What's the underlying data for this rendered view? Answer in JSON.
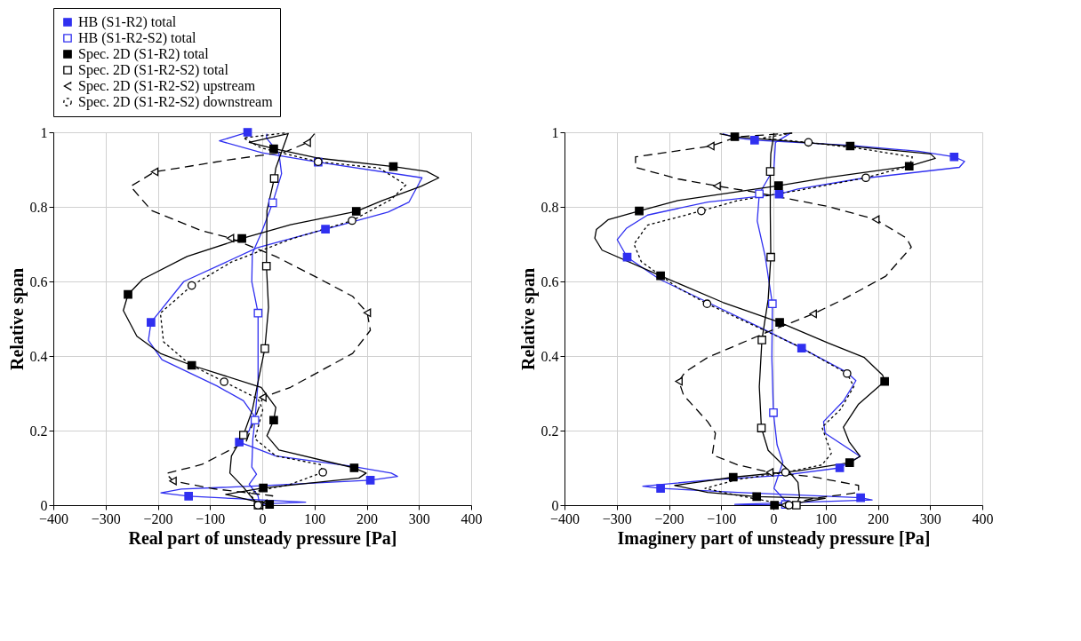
{
  "chart_data": [
    {
      "type": "line",
      "xlabel": "Real part of unsteady pressure [Pa]",
      "ylabel": "Relative span",
      "xlim": [
        -400,
        400
      ],
      "ylim": [
        0,
        1
      ],
      "xticks": [
        -400,
        -300,
        -200,
        -100,
        0,
        100,
        200,
        300,
        400
      ],
      "yticks": [
        0,
        0.2,
        0.4,
        0.6,
        0.8,
        1
      ],
      "grid": true,
      "legend": "top",
      "series": [
        {
          "type": "line",
          "name": "HB (S1-R2) total",
          "color": "#3030f0",
          "line_style": "solid",
          "x": [
            -28,
            -82,
            0,
            107,
            306,
            281,
            241,
            121,
            -10,
            -150,
            -213,
            -218,
            -192,
            -87,
            -36,
            -16,
            -25,
            -44,
            -25,
            26,
            168,
            247,
            259,
            207,
            -2,
            -155,
            -194,
            -141,
            -59,
            83,
            9,
            -2
          ],
          "values": [
            1.0,
            0.977,
            0.945,
            0.92,
            0.878,
            0.813,
            0.786,
            0.74,
            0.69,
            0.6,
            0.49,
            0.442,
            0.39,
            0.32,
            0.28,
            0.24,
            0.2,
            0.169,
            0.159,
            0.132,
            0.105,
            0.086,
            0.077,
            0.067,
            0.052,
            0.043,
            0.033,
            0.024,
            0.018,
            0.008,
            0.004,
            0.0
          ]
        },
        {
          "type": "scatter",
          "color": "#3030f0",
          "marker": "square",
          "x": [
            -28,
            107,
            121,
            -213,
            -44,
            207,
            -141
          ],
          "values": [
            1.0,
            0.92,
            0.74,
            0.49,
            0.169,
            0.067,
            0.024
          ]
        },
        {
          "type": "line",
          "name": "HB (S1-R2-S2) total",
          "color": "#3030f0",
          "line_style": "solid",
          "x": [
            9,
            8,
            32,
            37,
            20,
            -2,
            -19,
            -20,
            -8,
            -8,
            -14,
            -18,
            -20,
            -11,
            -25,
            -8,
            -5
          ],
          "values": [
            0.996,
            0.985,
            0.943,
            0.889,
            0.811,
            0.729,
            0.675,
            0.599,
            0.515,
            0.331,
            0.228,
            0.178,
            0.102,
            0.083,
            0.056,
            0.025,
            0.0
          ]
        },
        {
          "type": "scatter",
          "color": "#3030f0",
          "colors": [
            "#ffffff",
            "#ffffff",
            "#ffffff"
          ],
          "marker": "square",
          "x": [
            20,
            -8,
            -14
          ],
          "values": [
            0.811,
            0.515,
            0.228
          ]
        },
        {
          "type": "line",
          "name": "Spec. 2D (S1-R2) total",
          "color": "#000000",
          "line_style": "solid",
          "x": [
            49,
            -25,
            22,
            105,
            251,
            315,
            338,
            304,
            230,
            180,
            54,
            -39,
            -144,
            -229,
            -257,
            -266,
            -240,
            -195,
            -135,
            -2,
            26,
            22,
            9,
            32,
            176,
            199,
            185,
            2,
            -70,
            -25,
            14
          ],
          "values": [
            0.996,
            0.973,
            0.956,
            0.931,
            0.908,
            0.895,
            0.878,
            0.855,
            0.817,
            0.788,
            0.752,
            0.715,
            0.667,
            0.606,
            0.565,
            0.522,
            0.453,
            0.407,
            0.375,
            0.316,
            0.262,
            0.228,
            0.186,
            0.148,
            0.1,
            0.086,
            0.073,
            0.046,
            0.029,
            0.014,
            0.002
          ]
        },
        {
          "type": "scatter",
          "color": "#000000",
          "marker": "square",
          "x": [
            22,
            251,
            180,
            -39,
            -257,
            -135,
            22,
            176,
            2,
            14
          ],
          "values": [
            0.956,
            0.908,
            0.788,
            0.715,
            0.565,
            0.375,
            0.228,
            0.1,
            0.046,
            0.002
          ]
        },
        {
          "type": "line",
          "name": "Spec. 2D (S1-R2-S2) total",
          "color": "#000000",
          "line_style": "solid",
          "x": [
            50,
            26,
            23,
            9,
            8,
            12,
            5,
            -8,
            -19,
            -36,
            -59,
            -62,
            -36,
            -8
          ],
          "values": [
            0.998,
            0.904,
            0.876,
            0.79,
            0.641,
            0.53,
            0.42,
            0.331,
            0.255,
            0.188,
            0.132,
            0.086,
            0.048,
            0.0
          ]
        },
        {
          "type": "scatter",
          "color": "#000000",
          "colors": [
            "#ffffff",
            "#ffffff",
            "#ffffff",
            "#ffffff",
            "#ffffff"
          ],
          "marker": "square",
          "x": [
            23,
            8,
            5,
            -36,
            -8
          ],
          "values": [
            0.876,
            0.641,
            0.42,
            0.188,
            0.0
          ]
        },
        {
          "type": "line",
          "name": "Spec. 2D (S1-R2-S2) upstream",
          "color": "#000000",
          "line_style": "dashed",
          "x": [
            100,
            86,
            43,
            -59,
            -206,
            -252,
            -212,
            -116,
            -61,
            26,
            111,
            173,
            201,
            207,
            173,
            54,
            1,
            -31,
            -116,
            -184,
            -171,
            -93,
            20,
            -5
          ],
          "values": [
            0.996,
            0.972,
            0.947,
            0.927,
            0.894,
            0.855,
            0.79,
            0.736,
            0.716,
            0.667,
            0.606,
            0.56,
            0.516,
            0.469,
            0.407,
            0.316,
            0.289,
            0.17,
            0.109,
            0.085,
            0.065,
            0.044,
            0.025,
            0.0
          ]
        },
        {
          "type": "scatter",
          "color": "#000000",
          "colors": [
            "#ffffff",
            "#ffffff",
            "#ffffff",
            "#ffffff",
            "#ffffff",
            "#ffffff",
            "#ffffff"
          ],
          "marker": "triangle",
          "x": [
            86,
            -206,
            -61,
            201,
            1,
            -171,
            -5
          ],
          "values": [
            0.972,
            0.894,
            0.716,
            0.516,
            0.289,
            0.065,
            0.0
          ]
        },
        {
          "type": "line",
          "name": "Spec. 2D (S1-R2-S2) downstream",
          "color": "#000000",
          "line_style": "dotted",
          "x": [
            43,
            -36,
            -2,
            107,
            224,
            275,
            247,
            172,
            54,
            -59,
            -135,
            -195,
            -189,
            -138,
            -73,
            -8,
            1,
            -14,
            26,
            111,
            116,
            54,
            -25,
            -8
          ],
          "values": [
            0.998,
            0.985,
            0.958,
            0.921,
            0.904,
            0.859,
            0.82,
            0.763,
            0.713,
            0.652,
            0.589,
            0.515,
            0.438,
            0.377,
            0.331,
            0.285,
            0.255,
            0.178,
            0.132,
            0.109,
            0.088,
            0.056,
            0.033,
            0.0
          ]
        },
        {
          "type": "scatter",
          "color": "#000000",
          "colors": [
            "#ffffff",
            "#ffffff",
            "#ffffff",
            "#ffffff",
            "#ffffff",
            "#ffffff"
          ],
          "marker": "circle",
          "x": [
            107,
            172,
            -135,
            -73,
            116,
            -8
          ],
          "values": [
            0.921,
            0.763,
            0.589,
            0.331,
            0.088,
            0.0
          ]
        }
      ]
    },
    {
      "type": "line",
      "xlabel": "Imaginery part of unsteady pressure [Pa]",
      "ylabel": "Relative span",
      "xlim": [
        -400,
        400
      ],
      "ylim": [
        0,
        1
      ],
      "xticks": [
        -400,
        -300,
        -200,
        -100,
        0,
        100,
        200,
        300,
        400
      ],
      "yticks": [
        0,
        0.2,
        0.4,
        0.6,
        0.8,
        1
      ],
      "grid": true,
      "series": [
        {
          "type": "line",
          "color": "#3030f0",
          "line_style": "solid",
          "x": [
            -97,
            -68,
            -36,
            145,
            278,
            346,
            366,
            356,
            163,
            47,
            11,
            -126,
            -241,
            -281,
            -299,
            -280,
            -218,
            -126,
            -22,
            54,
            140,
            158,
            134,
            96,
            99,
            166,
            127,
            18,
            -126,
            -250,
            -216,
            -68,
            167,
            189,
            -74,
            13
          ],
          "values": [
            0.996,
            0.984,
            0.979,
            0.965,
            0.949,
            0.934,
            0.922,
            0.906,
            0.875,
            0.848,
            0.834,
            0.813,
            0.778,
            0.743,
            0.712,
            0.665,
            0.606,
            0.544,
            0.474,
            0.421,
            0.357,
            0.334,
            0.279,
            0.224,
            0.193,
            0.131,
            0.1,
            0.08,
            0.067,
            0.051,
            0.045,
            0.034,
            0.02,
            0.014,
            0.002,
            0.0
          ]
        },
        {
          "type": "scatter",
          "color": "#3030f0",
          "marker": "square",
          "x": [
            -36,
            346,
            11,
            -280,
            54,
            127,
            -216,
            167
          ],
          "values": [
            0.979,
            0.934,
            0.834,
            0.665,
            0.421,
            0.1,
            0.045,
            0.02
          ]
        },
        {
          "type": "line",
          "color": "#3030f0",
          "line_style": "solid",
          "x": [
            33,
            4,
            1,
            -27,
            -31,
            -16,
            -2,
            -3,
            0,
            7,
            18,
            1,
            24,
            23
          ],
          "values": [
            0.998,
            0.973,
            0.903,
            0.835,
            0.762,
            0.669,
            0.54,
            0.396,
            0.248,
            0.162,
            0.115,
            0.045,
            0.01,
            0.002
          ]
        },
        {
          "type": "scatter",
          "color": "#3030f0",
          "colors": [
            "#ffffff",
            "#ffffff",
            "#ffffff",
            "#ffffff"
          ],
          "marker": "square",
          "x": [
            -27,
            -2,
            0,
            23
          ],
          "values": [
            0.835,
            0.54,
            0.248,
            0.002
          ]
        },
        {
          "type": "line",
          "color": "#000000",
          "line_style": "solid",
          "x": [
            -103,
            -74,
            147,
            301,
            310,
            260,
            105,
            10,
            -183,
            -257,
            -316,
            -339,
            -342,
            -328,
            -216,
            -97,
            12,
            105,
            174,
            209,
            213,
            163,
            134,
            145,
            166,
            146,
            47,
            -77,
            -189,
            -126,
            -32,
            99,
            47,
            2
          ],
          "values": [
            0.996,
            0.988,
            0.963,
            0.942,
            0.93,
            0.909,
            0.879,
            0.857,
            0.817,
            0.789,
            0.766,
            0.739,
            0.716,
            0.684,
            0.615,
            0.544,
            0.49,
            0.435,
            0.396,
            0.349,
            0.332,
            0.271,
            0.209,
            0.17,
            0.131,
            0.114,
            0.092,
            0.075,
            0.053,
            0.034,
            0.023,
            0.018,
            0.006,
            0.0
          ]
        },
        {
          "type": "scatter",
          "color": "#000000",
          "marker": "square",
          "x": [
            -74,
            147,
            260,
            10,
            -257,
            -216,
            12,
            213,
            146,
            -77,
            -32,
            2
          ],
          "values": [
            0.988,
            0.963,
            0.909,
            0.857,
            0.789,
            0.615,
            0.49,
            0.332,
            0.114,
            0.075,
            0.023,
            0.0
          ]
        },
        {
          "type": "line",
          "color": "#000000",
          "line_style": "solid",
          "x": [
            1,
            -5,
            -6,
            -6,
            -5,
            -10,
            -22,
            -27,
            -23,
            -10,
            24,
            47,
            50,
            44
          ],
          "values": [
            0.998,
            0.942,
            0.895,
            0.786,
            0.665,
            0.552,
            0.443,
            0.318,
            0.207,
            0.147,
            0.1,
            0.061,
            0.022,
            0.0
          ]
        },
        {
          "type": "scatter",
          "color": "#000000",
          "colors": [
            "#ffffff",
            "#ffffff",
            "#ffffff",
            "#ffffff",
            "#ffffff"
          ],
          "marker": "square",
          "x": [
            -6,
            -5,
            -22,
            -23,
            44
          ],
          "values": [
            0.895,
            0.665,
            0.443,
            0.207,
            0.0
          ]
        },
        {
          "type": "line",
          "color": "#000000",
          "line_style": "dashed",
          "x": [
            36,
            -68,
            -120,
            -264,
            -264,
            -183,
            -108,
            -39,
            105,
            196,
            255,
            264,
            215,
            134,
            76,
            -22,
            -126,
            -169,
            -181,
            -172,
            -126,
            -111,
            -117,
            -68,
            -7,
            76,
            163,
            163,
            76,
            21
          ],
          "values": [
            0.998,
            0.988,
            0.963,
            0.934,
            0.906,
            0.875,
            0.856,
            0.84,
            0.801,
            0.766,
            0.716,
            0.692,
            0.614,
            0.552,
            0.513,
            0.458,
            0.396,
            0.357,
            0.332,
            0.295,
            0.224,
            0.193,
            0.135,
            0.108,
            0.088,
            0.076,
            0.053,
            0.034,
            0.018,
            0.0
          ]
        },
        {
          "type": "scatter",
          "color": "#000000",
          "colors": [
            "#ffffff",
            "#ffffff",
            "#ffffff",
            "#ffffff",
            "#ffffff",
            "#ffffff",
            "#ffffff"
          ],
          "marker": "triangle",
          "x": [
            -120,
            -108,
            196,
            76,
            -181,
            -7,
            21
          ],
          "values": [
            0.963,
            0.856,
            0.766,
            0.513,
            0.332,
            0.088,
            0.0
          ]
        },
        {
          "type": "line",
          "color": "#000000",
          "line_style": "dotted",
          "x": [
            36,
            -22,
            67,
            163,
            266,
            261,
            177,
            47,
            -68,
            -138,
            -241,
            -267,
            -253,
            -183,
            -127,
            47,
            141,
            154,
            128,
            93,
            111,
            93,
            23,
            -68,
            -131,
            -68,
            30
          ],
          "values": [
            0.998,
            0.984,
            0.973,
            0.957,
            0.934,
            0.91,
            0.878,
            0.844,
            0.817,
            0.789,
            0.751,
            0.7,
            0.653,
            0.583,
            0.54,
            0.427,
            0.353,
            0.318,
            0.256,
            0.209,
            0.139,
            0.108,
            0.088,
            0.069,
            0.045,
            0.026,
            0.0
          ]
        },
        {
          "type": "scatter",
          "color": "#000000",
          "colors": [
            "#ffffff",
            "#ffffff",
            "#ffffff",
            "#ffffff",
            "#ffffff",
            "#ffffff",
            "#ffffff"
          ],
          "marker": "circle",
          "x": [
            67,
            177,
            -138,
            -127,
            141,
            23,
            30
          ],
          "values": [
            0.973,
            0.878,
            0.789,
            0.54,
            0.353,
            0.088,
            0.0
          ]
        }
      ]
    }
  ]
}
